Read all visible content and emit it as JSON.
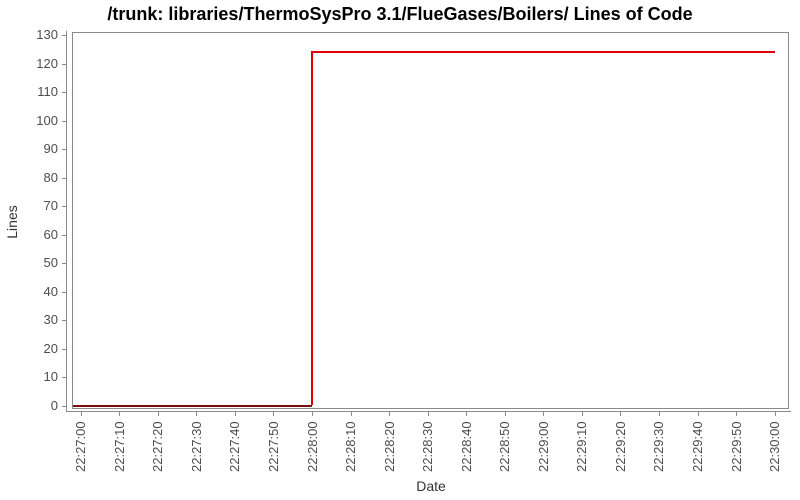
{
  "chart_data": {
    "type": "line",
    "line_style": "step",
    "title": "/trunk: libraries/ThermoSysPro 3.1/FlueGases/Boilers/ Lines of Code",
    "xlabel": "Date",
    "ylabel": "Lines",
    "ylim": [
      0,
      130
    ],
    "y_ticks": [
      0,
      10,
      20,
      30,
      40,
      50,
      60,
      70,
      80,
      90,
      100,
      110,
      120,
      130
    ],
    "x_tick_labels": [
      "22:27:00",
      "22:27:10",
      "22:27:20",
      "22:27:30",
      "22:27:40",
      "22:27:50",
      "22:28:00",
      "22:28:10",
      "22:28:20",
      "22:28:30",
      "22:28:40",
      "22:28:50",
      "22:29:00",
      "22:29:10",
      "22:29:20",
      "22:29:30",
      "22:29:40",
      "22:29:50",
      "22:30:00"
    ],
    "grid": false,
    "legend": "none",
    "series": [
      {
        "name": "Lines of Code",
        "color": "#e00000",
        "points": [
          {
            "x": "22:27:00",
            "y": 0
          },
          {
            "x": "22:28:00",
            "y": 0
          },
          {
            "x": "22:28:00",
            "y": 124
          },
          {
            "x": "22:30:00",
            "y": 124
          }
        ]
      }
    ],
    "colors": {
      "axis": "#8a8a8a",
      "tick_label": "#4d4d4d",
      "axis_label": "#333333",
      "title": "#000000",
      "line_on_axis": "#7c0b0b",
      "plot_background": "#ffffff"
    }
  }
}
